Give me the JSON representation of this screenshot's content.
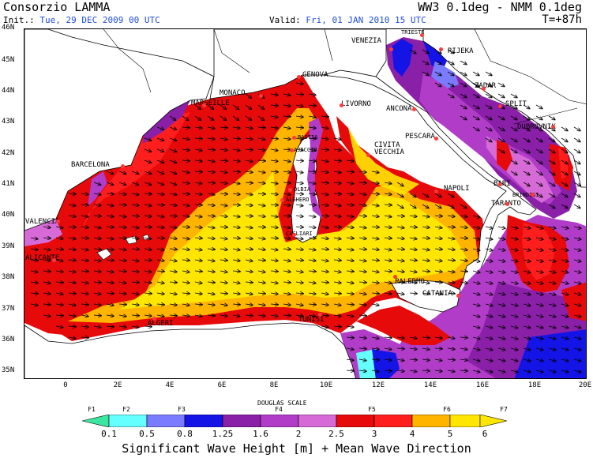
{
  "header": {
    "organization": "Consorzio LAMMA",
    "model": "WW3 0.1deg - NMM 0.1deg",
    "init_label": "Init.:",
    "init_date": "Tue, 29 DEC 2009   00 UTC",
    "valid_label": "Valid:",
    "valid_date": "Fri, 01 JAN 2010   15 UTC",
    "forecast_step": "T=+87h"
  },
  "map": {
    "lat_labels": [
      "46N",
      "45N",
      "44N",
      "43N",
      "42N",
      "41N",
      "40N",
      "39N",
      "38N",
      "37N",
      "36N",
      "35N"
    ],
    "lon_labels": [
      "0",
      "2E",
      "4E",
      "6E",
      "8E",
      "10E",
      "12E",
      "14E",
      "16E",
      "18E",
      "20E"
    ],
    "cities": [
      {
        "name": "TRIESTE"
      },
      {
        "name": "VENEZIA"
      },
      {
        "name": "RIJEKA"
      },
      {
        "name": "GENOVA"
      },
      {
        "name": "MONACO"
      },
      {
        "name": "MARSEILLE"
      },
      {
        "name": "LIVORNO"
      },
      {
        "name": "ANCONA"
      },
      {
        "name": "ZADAR"
      },
      {
        "name": "SPLIT"
      },
      {
        "name": "DUBROVNIK"
      },
      {
        "name": "BASTIA"
      },
      {
        "name": "AJACCIO"
      },
      {
        "name": "CIVITA VECCHIA"
      },
      {
        "name": "PESCARA"
      },
      {
        "name": "BARCELONA"
      },
      {
        "name": "OLBIA"
      },
      {
        "name": "ALGHERO"
      },
      {
        "name": "NAPOLI"
      },
      {
        "name": "BARI"
      },
      {
        "name": "BRINDISI"
      },
      {
        "name": "TARANTO"
      },
      {
        "name": "VALENCIA"
      },
      {
        "name": "CAGLIARI"
      },
      {
        "name": "ALICANTE"
      },
      {
        "name": "PALERMO"
      },
      {
        "name": "CATANIA"
      },
      {
        "name": "ALGERI"
      },
      {
        "name": "TUNISI"
      }
    ]
  },
  "legend": {
    "scale_name": "DOUGLAS SCALE",
    "douglas_labels": [
      "F1",
      "F2",
      "F3",
      "F4",
      "F5",
      "F6",
      "F7"
    ],
    "ticks": [
      "0.1",
      "0.5",
      "0.8",
      "1.25",
      "1.6",
      "2",
      "2.5",
      "3",
      "4",
      "5",
      "6"
    ],
    "colors": [
      "#3ce6a0",
      "#66ffff",
      "#7b7bff",
      "#1414e6",
      "#8a1fa8",
      "#b03cc8",
      "#d66ad6",
      "#e60a0a",
      "#ff1e1e",
      "#ffb400",
      "#ffe600"
    ],
    "title": "Significant Wave Height [m] + Mean Wave Direction"
  }
}
